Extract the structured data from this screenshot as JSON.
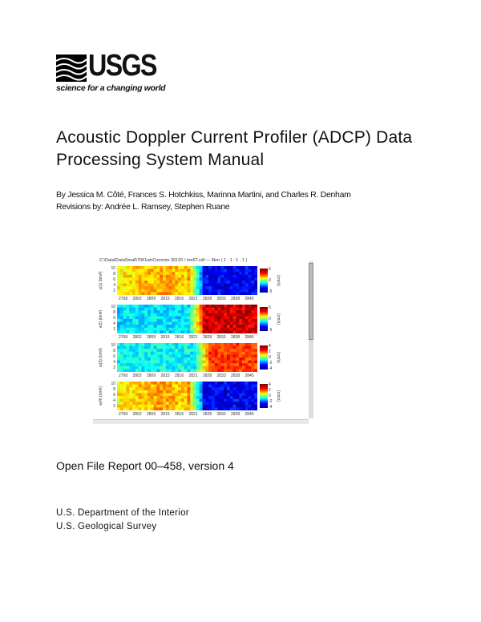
{
  "logo": {
    "wordmark": "USGS",
    "tagline": "science for a changing world"
  },
  "title": "Acoustic Doppler Current Profiler (ADCP) Data Processing System Manual",
  "authors": "By Jessica M. Côté, Frances S. Hotchkiss, Marinna Martini, and Charles R. Denham",
  "revisions": "Revisions by: Andrée L. Ramsey, Stephen Ruane",
  "figure": {
    "title": "C:\\Data\\DataSmall\\7061whCurrents 30120 \\ hm5T.cdf — 5km ( 1 : 1 : 1 : 1 )",
    "x_ticks": [
      "2768",
      "2802",
      "2809",
      "2815",
      "2816",
      "2821",
      "2828",
      "2833",
      "2838",
      "2845"
    ],
    "y_ticks": [
      "10",
      "8",
      "6",
      "4",
      "2"
    ],
    "panels": [
      {
        "ylabel": "u(1) (bin#)",
        "pattern": "warm-to-cold",
        "cunit": "(cm/s)",
        "cticks": [
          "5",
          "0",
          "-5"
        ]
      },
      {
        "ylabel": "v(2) (bin#)",
        "pattern": "cold-to-warm",
        "cunit": "(cm/s)",
        "cticks": [
          "5",
          "0",
          "-5"
        ]
      },
      {
        "ylabel": "w(3) (bin#)",
        "pattern": "cool-to-warm",
        "cunit": "(cm/s)",
        "cticks": [
          "4",
          "2",
          "0",
          "-2",
          "-4"
        ]
      },
      {
        "ylabel": "w(4) (bin#)",
        "pattern": "warm-to-cold",
        "cunit": "(cm/s)",
        "cticks": [
          "4",
          "2",
          "0",
          "-2",
          "-4"
        ]
      }
    ]
  },
  "report": "Open File Report 00–458, version 4",
  "agency": [
    "U.S. Department of the Interior",
    "U.S. Geological Survey"
  ]
}
